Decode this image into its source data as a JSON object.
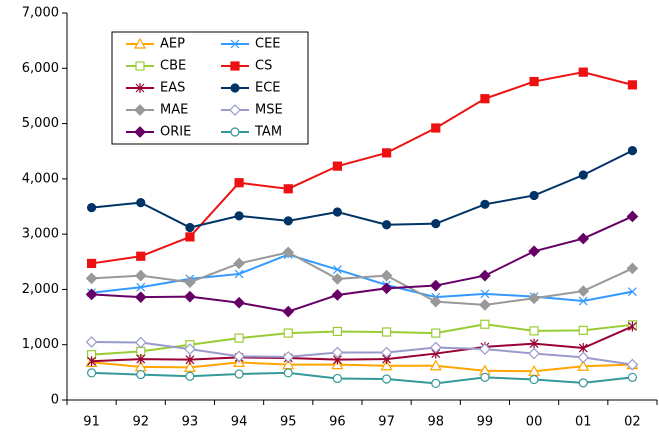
{
  "chart_data": {
    "type": "line",
    "categories": [
      "91",
      "92",
      "93",
      "94",
      "95",
      "96",
      "97",
      "98",
      "99",
      "00",
      "01",
      "02"
    ],
    "series": [
      {
        "name": "AEP",
        "color": "#ffa500",
        "marker": "triangle-open",
        "values": [
          680,
          600,
          590,
          680,
          640,
          640,
          620,
          620,
          530,
          520,
          610,
          640
        ]
      },
      {
        "name": "CEE",
        "color": "#3399ff",
        "marker": "x",
        "values": [
          1940,
          2040,
          2190,
          2280,
          2630,
          2360,
          2080,
          1860,
          1920,
          1870,
          1790,
          1960
        ]
      },
      {
        "name": "CBE",
        "color": "#99cc33",
        "marker": "square-open",
        "values": [
          820,
          880,
          1000,
          1120,
          1210,
          1240,
          1230,
          1210,
          1370,
          1250,
          1260,
          1360
        ]
      },
      {
        "name": "CS",
        "color": "#ee1111",
        "marker": "square",
        "values": [
          2470,
          2600,
          2950,
          3930,
          3820,
          4230,
          4470,
          4920,
          5450,
          5760,
          5930,
          5700
        ]
      },
      {
        "name": "EAS",
        "color": "#990033",
        "marker": "star",
        "values": [
          700,
          740,
          730,
          770,
          760,
          730,
          740,
          840,
          960,
          1020,
          940,
          1330
        ]
      },
      {
        "name": "ECE",
        "color": "#003366",
        "marker": "circle",
        "values": [
          3480,
          3570,
          3120,
          3330,
          3240,
          3400,
          3170,
          3190,
          3540,
          3700,
          4070,
          4510
        ]
      },
      {
        "name": "MAE",
        "color": "#999999",
        "marker": "diamond",
        "values": [
          2200,
          2250,
          2130,
          2470,
          2670,
          2190,
          2250,
          1780,
          1720,
          1840,
          1970,
          2380
        ]
      },
      {
        "name": "MSE",
        "color": "#9999cc",
        "marker": "diamond-open",
        "values": [
          1050,
          1040,
          920,
          790,
          780,
          860,
          860,
          950,
          920,
          840,
          770,
          640
        ]
      },
      {
        "name": "ORIE",
        "color": "#660066",
        "marker": "diamond",
        "values": [
          1910,
          1860,
          1870,
          1760,
          1600,
          1900,
          2020,
          2070,
          2250,
          2690,
          2920,
          3320
        ]
      },
      {
        "name": "TAM",
        "color": "#339999",
        "marker": "circle-open",
        "values": [
          490,
          460,
          430,
          470,
          490,
          390,
          380,
          300,
          410,
          370,
          310,
          410
        ]
      }
    ],
    "ylim": [
      0,
      7000
    ],
    "yticks": [
      0,
      {
        "value": 1000,
        "label": "1,000"
      },
      {
        "value": 2000,
        "label": "2,000"
      },
      {
        "value": 3000,
        "label": "3,000"
      },
      {
        "value": 4000,
        "label": "4,000"
      },
      {
        "value": 5000,
        "label": "5,000"
      },
      {
        "value": 6000,
        "label": "6,000"
      },
      {
        "value": 7000,
        "label": "7,000"
      }
    ],
    "legend": "upper left"
  }
}
